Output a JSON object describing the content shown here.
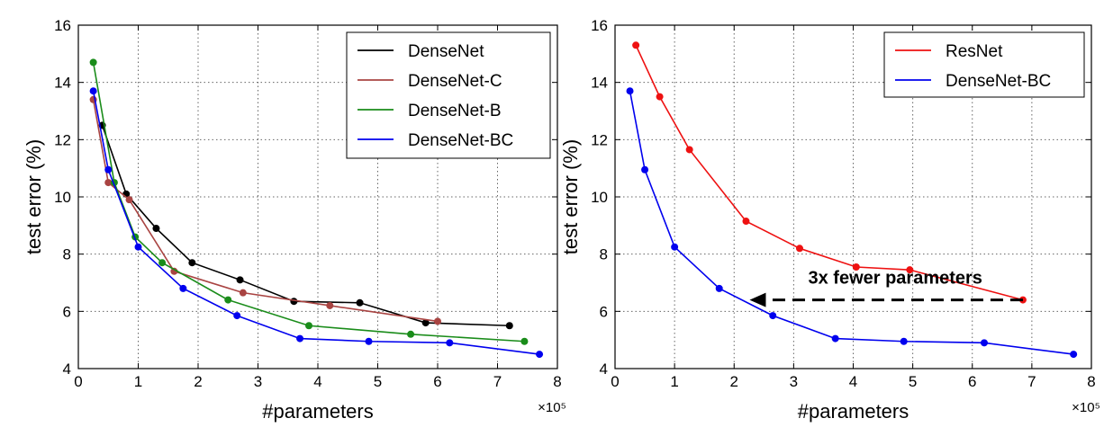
{
  "chart_data": [
    {
      "type": "line",
      "xlabel": "#parameters",
      "ylabel": "test error (%)",
      "x_multiplier_label": "×10⁵",
      "xlim": [
        0,
        8
      ],
      "ylim": [
        4,
        16
      ],
      "xticks": [
        "0",
        "1",
        "2",
        "3",
        "4",
        "5",
        "6",
        "7",
        "8"
      ],
      "yticks": [
        "4",
        "6",
        "8",
        "10",
        "12",
        "14",
        "16"
      ],
      "grid": true,
      "legend_position": "top-right",
      "series": [
        {
          "name": "DenseNet",
          "color": "#000000",
          "x": [
            0.4,
            0.8,
            1.3,
            1.9,
            2.7,
            3.6,
            4.7,
            5.8,
            7.2
          ],
          "y": [
            12.5,
            10.1,
            8.9,
            7.7,
            7.1,
            6.35,
            6.3,
            5.6,
            5.5
          ]
        },
        {
          "name": "DenseNet-C",
          "color": "#a94442",
          "x": [
            0.25,
            0.5,
            0.85,
            1.6,
            2.75,
            4.2,
            6.0
          ],
          "y": [
            13.4,
            10.5,
            9.9,
            7.4,
            6.65,
            6.2,
            5.65
          ]
        },
        {
          "name": "DenseNet-B",
          "color": "#1a8c1a",
          "x": [
            0.25,
            0.6,
            0.95,
            1.4,
            2.5,
            3.85,
            5.55,
            7.45
          ],
          "y": [
            14.7,
            10.5,
            8.6,
            7.7,
            6.4,
            5.5,
            5.2,
            4.95
          ]
        },
        {
          "name": "DenseNet-BC",
          "color": "#0000ee",
          "x": [
            0.25,
            0.5,
            1.0,
            1.75,
            2.65,
            3.7,
            4.85,
            6.2,
            7.7
          ],
          "y": [
            13.7,
            10.95,
            8.25,
            6.8,
            5.85,
            5.05,
            4.95,
            4.9,
            4.5
          ]
        }
      ]
    },
    {
      "type": "line",
      "xlabel": "#parameters",
      "ylabel": "test error (%)",
      "x_multiplier_label": "×10⁵",
      "xlim": [
        0,
        8
      ],
      "ylim": [
        4,
        16
      ],
      "xticks": [
        "0",
        "1",
        "2",
        "3",
        "4",
        "5",
        "6",
        "7",
        "8"
      ],
      "yticks": [
        "4",
        "6",
        "8",
        "10",
        "12",
        "14",
        "16"
      ],
      "grid": true,
      "legend_position": "top-right",
      "series": [
        {
          "name": "ResNet",
          "color": "#ee1111",
          "x": [
            0.35,
            0.75,
            1.25,
            2.2,
            3.1,
            4.05,
            4.95,
            6.85
          ],
          "y": [
            15.3,
            13.5,
            11.65,
            9.15,
            8.2,
            7.55,
            7.45,
            6.4
          ]
        },
        {
          "name": "DenseNet-BC",
          "color": "#0000ee",
          "x": [
            0.25,
            0.5,
            1.0,
            1.75,
            2.65,
            3.7,
            4.85,
            6.2,
            7.7
          ],
          "y": [
            13.7,
            10.95,
            8.25,
            6.8,
            5.85,
            5.05,
            4.95,
            4.9,
            4.5
          ]
        }
      ],
      "annotation": {
        "text": "3x fewer parameters",
        "arrow_from": [
          6.85,
          6.4
        ],
        "arrow_to": [
          2.2,
          6.4
        ],
        "style": "dashed"
      }
    }
  ]
}
